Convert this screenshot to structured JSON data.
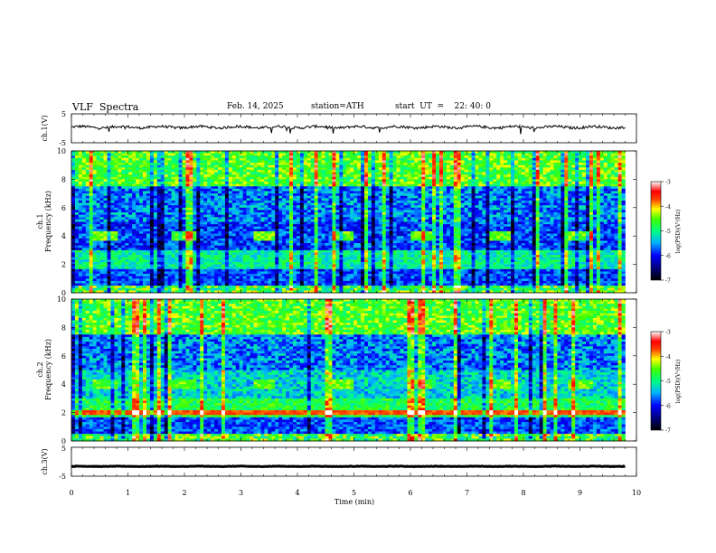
{
  "header": {
    "title": "VLF  Spectra",
    "date": "Feb. 14, 2025",
    "station": "station=ATH",
    "start_ut": "start  UT  =    22: 40: 0"
  },
  "chart_data": [
    {
      "type": "line",
      "panel": "ch1-waveform",
      "ylabel": "ch.1(V)",
      "ylim": [
        -5,
        5
      ],
      "yticks": [
        "5",
        "-5"
      ],
      "xlim": [
        0,
        10
      ],
      "series": [
        {
          "values_desc": "",
          "mean": 0.4,
          "noise": 0.9
        }
      ]
    },
    {
      "type": "heatmap",
      "panel": "ch1-spectrogram",
      "ylabel_prefix": "ch.1",
      "ylabel": "Frequency  (kHz)",
      "ylim": [
        0,
        10
      ],
      "yticks": [
        "0",
        "2",
        "4",
        "6",
        "8",
        "10"
      ],
      "xlim": [
        0,
        9.8
      ],
      "colorbar": {
        "label": "log(PSD)(V²/Hz)",
        "range": [
          -7,
          -3
        ],
        "ticks": [
          "-3",
          "-4",
          "-5",
          "-6",
          "-7"
        ]
      },
      "bursts_min": [
        0.4,
        1.8,
        3.2,
        4.6,
        6.0,
        7.4,
        8.8
      ],
      "burst_freq_khz": [
        3.7,
        4.4
      ]
    },
    {
      "type": "heatmap",
      "panel": "ch2-spectrogram",
      "ylabel_prefix": "ch.2",
      "ylabel": "Frequency  (kHz)",
      "ylim": [
        0,
        10
      ],
      "yticks": [
        "0",
        "2",
        "4",
        "6",
        "8",
        "10"
      ],
      "xlim": [
        0,
        9.8
      ],
      "colorbar": {
        "label": "log(PSD)(V²/Hz)",
        "range": [
          -7,
          -3
        ],
        "ticks": [
          "-3",
          "-4",
          "-5",
          "-6",
          "-7"
        ]
      },
      "bursts_min": [
        0.4,
        1.8,
        3.2,
        4.6,
        6.0,
        7.4,
        8.8
      ],
      "burst_freq_khz": [
        3.7,
        4.4
      ]
    },
    {
      "type": "line",
      "panel": "ch3-waveform",
      "ylabel": "ch.3(V)",
      "ylim": [
        -5,
        5
      ],
      "yticks": [
        "5",
        "-5"
      ],
      "xlim": [
        0,
        10
      ],
      "series": [
        {
          "mean": -1.6,
          "noise": 0.15
        }
      ],
      "xlabel": "Time  (min)",
      "xticks": [
        "0",
        "1",
        "2",
        "3",
        "4",
        "5",
        "6",
        "7",
        "8",
        "9",
        "10"
      ]
    }
  ]
}
